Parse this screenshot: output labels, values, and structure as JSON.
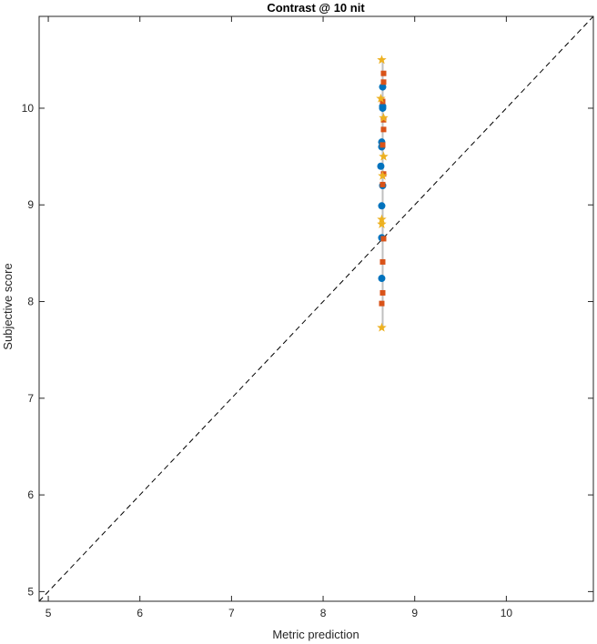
{
  "chart_data": {
    "type": "scatter",
    "title": "Contrast @ 10 nit",
    "xlabel": "Metric prediction",
    "ylabel": "Subjective score",
    "xlim": [
      4.9,
      10.95
    ],
    "ylim": [
      4.9,
      10.95
    ],
    "xticks": [
      5,
      6,
      7,
      8,
      9,
      10
    ],
    "yticks": [
      5,
      6,
      7,
      8,
      9,
      10
    ],
    "grid": false,
    "reference_line": {
      "style": "dashed",
      "color": "#000000",
      "from": [
        4.9,
        4.9
      ],
      "to": [
        10.95,
        10.95
      ]
    },
    "connector": {
      "x": 8.65,
      "y_range": [
        7.73,
        10.5
      ],
      "color": "#bfbfbf"
    },
    "series": [
      {
        "marker": "circle",
        "color": "#0072BD",
        "points": [
          [
            8.65,
            10.22
          ],
          [
            8.65,
            10.0
          ],
          [
            8.64,
            9.65
          ],
          [
            8.64,
            9.6
          ],
          [
            8.63,
            9.4
          ],
          [
            8.65,
            9.2
          ],
          [
            8.64,
            8.99
          ],
          [
            8.64,
            8.66
          ],
          [
            8.64,
            8.24
          ],
          [
            8.65,
            10.02
          ]
        ]
      },
      {
        "marker": "square",
        "color": "#D95319",
        "points": [
          [
            8.66,
            10.36
          ],
          [
            8.66,
            10.27
          ],
          [
            8.65,
            10.07
          ],
          [
            8.66,
            9.88
          ],
          [
            8.66,
            9.78
          ],
          [
            8.65,
            9.62
          ],
          [
            8.66,
            9.32
          ],
          [
            8.65,
            9.21
          ],
          [
            8.66,
            8.65
          ],
          [
            8.65,
            8.41
          ],
          [
            8.65,
            8.09
          ],
          [
            8.64,
            7.98
          ]
        ]
      },
      {
        "marker": "star",
        "color": "#EDB120",
        "points": [
          [
            8.64,
            10.5
          ],
          [
            8.63,
            10.1
          ],
          [
            8.66,
            9.9
          ],
          [
            8.66,
            9.5
          ],
          [
            8.65,
            9.3
          ],
          [
            8.64,
            8.85
          ],
          [
            8.64,
            8.8
          ],
          [
            8.64,
            7.73
          ]
        ]
      }
    ]
  }
}
